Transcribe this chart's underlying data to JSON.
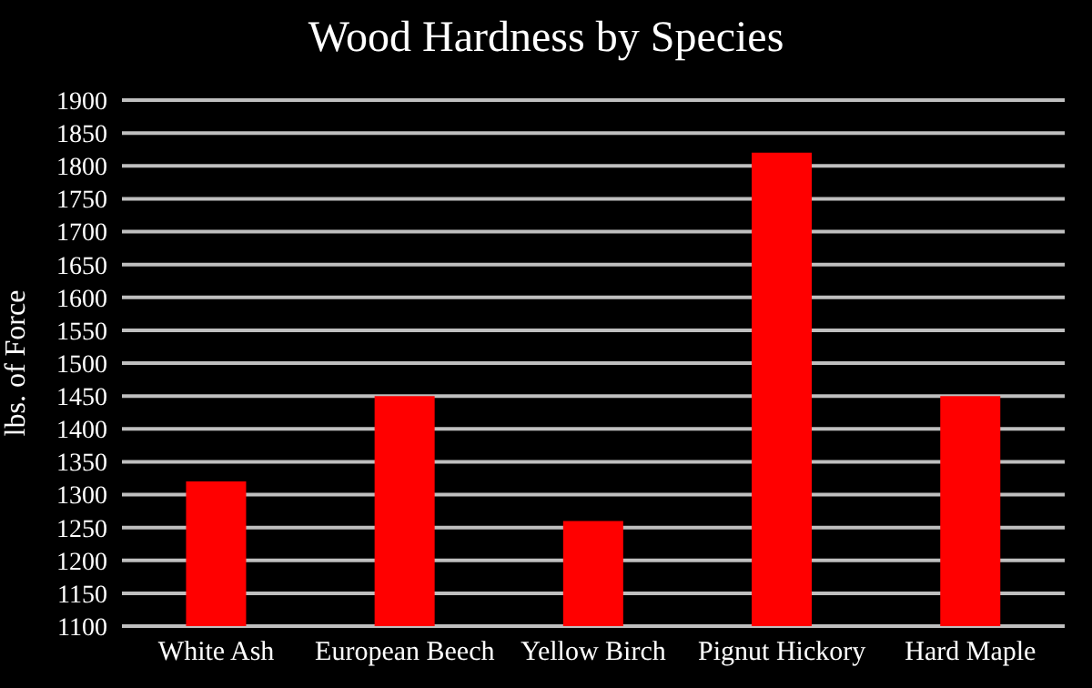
{
  "chart_data": {
    "type": "bar",
    "title": "Wood Hardness by Species",
    "ylabel": "lbs. of Force",
    "categories": [
      "White Ash",
      "European Beech",
      "Yellow Birch",
      "Pignut Hickory",
      "Hard Maple"
    ],
    "values": [
      1320,
      1450,
      1260,
      1820,
      1450
    ],
    "color": "#ff0000",
    "ylim": [
      1100,
      1900
    ],
    "yticks": [
      1100,
      1150,
      1200,
      1250,
      1300,
      1350,
      1400,
      1450,
      1500,
      1550,
      1600,
      1650,
      1700,
      1750,
      1800,
      1850,
      1900
    ],
    "grid": "y"
  }
}
